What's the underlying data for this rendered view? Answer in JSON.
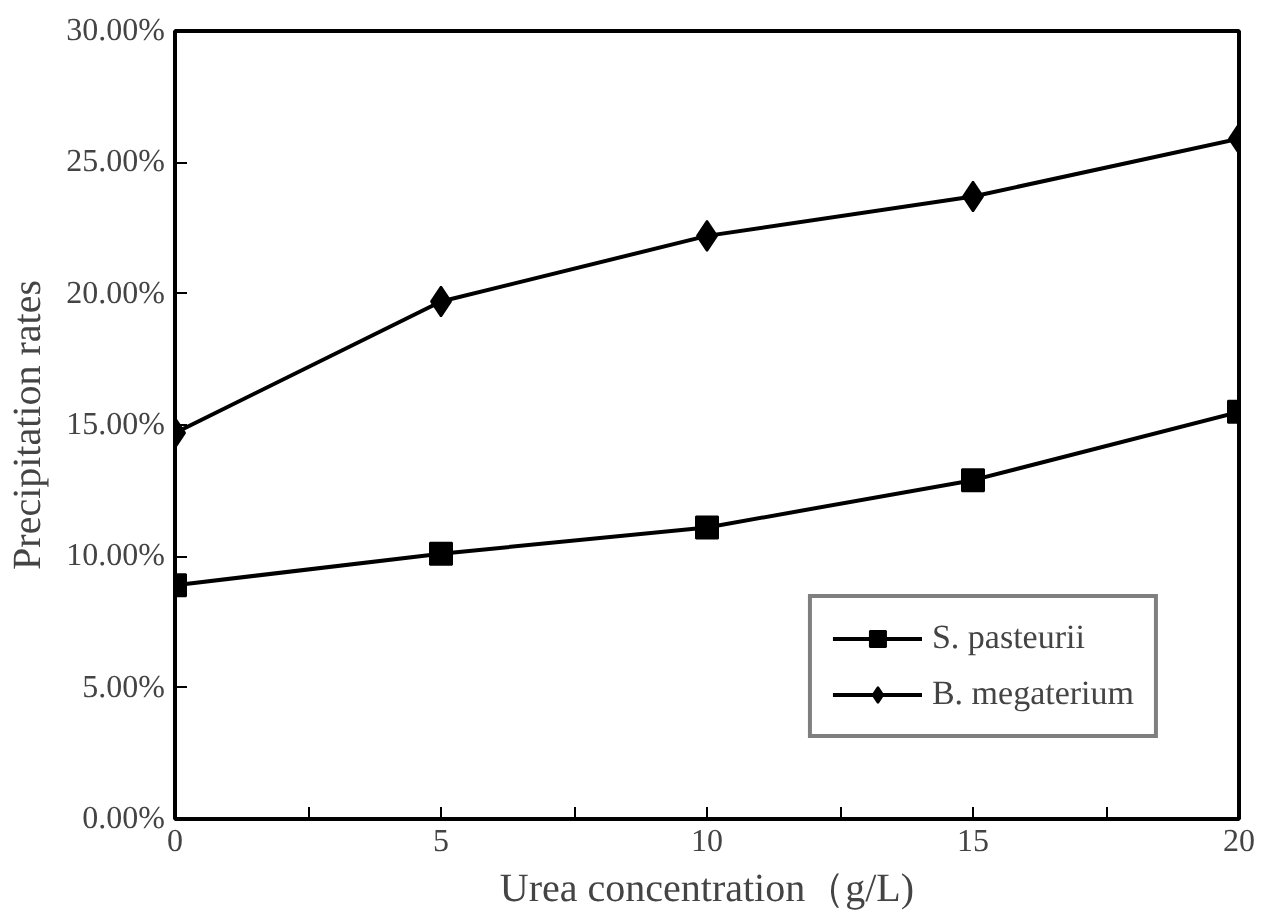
{
  "chart_data": {
    "type": "line",
    "xlabel": "Urea concentration（g/L)",
    "ylabel": "Precipitation rates",
    "x": [
      0,
      5,
      10,
      15,
      20
    ],
    "series": [
      {
        "name": "S. pasteurii",
        "color": "#000000",
        "marker": "square",
        "values": [
          8.9,
          10.1,
          11.1,
          12.9,
          15.5
        ]
      },
      {
        "name": "B. megaterium",
        "color": "#000000",
        "marker": "diamond",
        "values": [
          14.7,
          19.7,
          22.2,
          23.7,
          25.9
        ]
      }
    ],
    "xlim": [
      0,
      20
    ],
    "xticks": [
      0,
      {
        "value": 2.5,
        "label": null
      },
      5,
      {
        "value": 7.5,
        "label": null
      },
      10,
      {
        "value": 12.5,
        "label": null
      },
      15,
      {
        "value": 17.5,
        "label": null
      },
      20
    ],
    "ylim": [
      0,
      30
    ],
    "yticks": [
      {
        "value": 0,
        "label": "0.00%"
      },
      {
        "value": 5,
        "label": "5.00%"
      },
      {
        "value": 10,
        "label": "10.00%"
      },
      {
        "value": 15,
        "label": "15.00%"
      },
      {
        "value": 20,
        "label": "20.00%"
      },
      {
        "value": 25,
        "label": "25.00%"
      },
      {
        "value": 30,
        "label": "30.00%"
      }
    ],
    "grid": false,
    "legend": "bottom right",
    "line_style": "solid"
  }
}
